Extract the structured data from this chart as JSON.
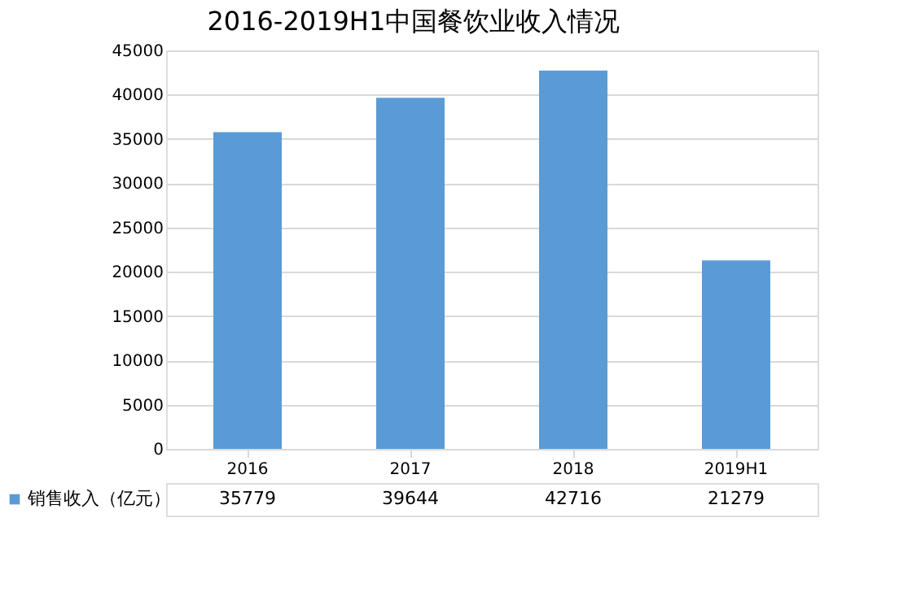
{
  "chart_data": {
    "type": "bar",
    "title": "2016-2019H1中国餐饮业收入情况",
    "categories": [
      "2016",
      "2017",
      "2018",
      "2019H1"
    ],
    "series": [
      {
        "name": "销售收入（亿元）",
        "color": "#5b9bd5",
        "values": [
          35779,
          39644,
          42716,
          21279
        ]
      }
    ],
    "ylim": [
      0,
      45000
    ],
    "yticks": [
      0,
      5000,
      10000,
      15000,
      20000,
      25000,
      30000,
      35000,
      40000,
      45000
    ],
    "grid": "y",
    "data_labels": true,
    "legend": "bottom left"
  }
}
